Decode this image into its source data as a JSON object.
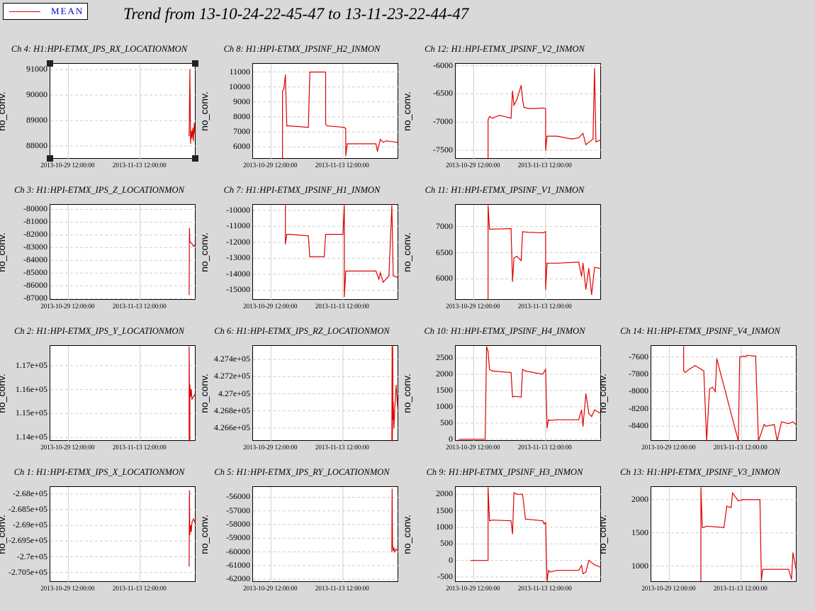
{
  "legend": {
    "label": "MEAN",
    "color": "#e00000"
  },
  "title": "Trend from 13-10-24-22-45-47 to 13-11-23-22-44-47",
  "colors": {
    "trace": "#e00000",
    "grid": "#cfcfcf",
    "background": "#d9d9d9"
  },
  "chart_data": [
    {
      "id": "ch4",
      "type": "line",
      "title": "Ch 4: H1:HPI-ETMX_IPS_RX_LOCATIONMON",
      "ylabel": "no_conv.",
      "ylim": [
        87500,
        91200
      ],
      "yticks": [
        88000,
        89000,
        90000,
        91000
      ],
      "ytick_labels": [
        "88000",
        "89000",
        "90000",
        "91000"
      ],
      "xlim": [
        0,
        1
      ],
      "xtick_pos": [
        0.12,
        0.62
      ],
      "xtick_labels": [
        "2013-10-29 12:00:00",
        "2013-11-13 12:00:00"
      ],
      "selected": true,
      "series": [
        {
          "x": [
            0.96,
            0.965,
            0.97,
            0.975,
            0.98,
            0.985,
            0.99,
            0.995,
            1.0
          ],
          "y": [
            88400,
            91000,
            88100,
            88600,
            88300,
            88700,
            88200,
            88900,
            88500
          ]
        }
      ]
    },
    {
      "id": "ch8",
      "type": "line",
      "title": "Ch 8: H1:HPI-ETMX_IPSINF_H2_INMON",
      "ylabel": "no_conv.",
      "ylim": [
        5200,
        11500
      ],
      "yticks": [
        6000,
        7000,
        8000,
        9000,
        10000,
        11000
      ],
      "ytick_labels": [
        "6000",
        "7000",
        "8000",
        "9000",
        "10000",
        "11000"
      ],
      "xlim": [
        0,
        1
      ],
      "xtick_pos": [
        0.12,
        0.62
      ],
      "xtick_labels": [
        "2013-10-29 12:00:00",
        "2013-11-13 12:00:00"
      ],
      "series": [
        {
          "x": [
            0.2,
            0.2,
            0.21,
            0.22,
            0.23,
            0.25,
            0.38,
            0.39,
            0.4,
            0.5,
            0.5,
            0.51,
            0.63,
            0.64,
            0.64,
            0.65,
            0.85,
            0.86,
            0.88,
            0.9,
            0.92,
            1.0
          ],
          "y": [
            5200,
            9700,
            9900,
            10800,
            7400,
            7400,
            7300,
            11000,
            11000,
            11000,
            7500,
            7400,
            7300,
            7200,
            5400,
            6200,
            6200,
            5700,
            6500,
            6300,
            6400,
            6300
          ]
        }
      ]
    },
    {
      "id": "ch12",
      "type": "line",
      "title": "Ch 12: H1:HPI-ETMX_IPSINF_V2_INMON",
      "ylabel": "no_conv.",
      "ylim": [
        -7650,
        -5980
      ],
      "yticks": [
        -7500,
        -7000,
        -6500,
        -6000
      ],
      "ytick_labels": [
        "-7500",
        "-7000",
        "-6500",
        "-6000"
      ],
      "xlim": [
        0,
        1
      ],
      "xtick_pos": [
        0.12,
        0.62
      ],
      "xtick_labels": [
        "2013-10-29 12:00:00",
        "2013-11-13 12:00:00"
      ],
      "series": [
        {
          "x": [
            0.22,
            0.22,
            0.23,
            0.25,
            0.3,
            0.38,
            0.39,
            0.4,
            0.42,
            0.45,
            0.46,
            0.47,
            0.5,
            0.55,
            0.6,
            0.62,
            0.62,
            0.63,
            0.7,
            0.8,
            0.85,
            0.88,
            0.9,
            0.95,
            0.96,
            0.97,
            1.0
          ],
          "y": [
            -7650,
            -6960,
            -6900,
            -6930,
            -6880,
            -6930,
            -6450,
            -6700,
            -6600,
            -6350,
            -6600,
            -6740,
            -6760,
            -6760,
            -6750,
            -6760,
            -7500,
            -7250,
            -7250,
            -7300,
            -7280,
            -7200,
            -7400,
            -7300,
            -6050,
            -7350,
            -7320
          ]
        }
      ]
    },
    {
      "id": "ch3",
      "type": "line",
      "title": "Ch 3: H1:HPI-ETMX_IPS_Z_LOCATIONMON",
      "ylabel": "no_conv.",
      "ylim": [
        -87100,
        -79700
      ],
      "yticks": [
        -87000,
        -86000,
        -85000,
        -84000,
        -83000,
        -82000,
        -81000,
        -80000
      ],
      "ytick_labels": [
        "-87000",
        "-86000",
        "-85000",
        "-84000",
        "-83000",
        "-82000",
        "-81000",
        "-80000"
      ],
      "xlim": [
        0,
        1
      ],
      "xtick_pos": [
        0.12,
        0.62
      ],
      "xtick_labels": [
        "2013-10-29 12:00:00",
        "2013-11-13 12:00:00"
      ],
      "series": [
        {
          "x": [
            0.96,
            0.962,
            0.965,
            0.97,
            0.98,
            0.99,
            1.0
          ],
          "y": [
            -86700,
            -81500,
            -82500,
            -82600,
            -82700,
            -82900,
            -82800
          ]
        }
      ]
    },
    {
      "id": "ch7",
      "type": "line",
      "title": "Ch 7: H1:HPI-ETMX_IPSINF_H1_INMON",
      "ylabel": "no_conv.",
      "ylim": [
        -15600,
        -9700
      ],
      "yticks": [
        -15000,
        -14000,
        -13000,
        -12000,
        -11000,
        -10000
      ],
      "ytick_labels": [
        "-15000",
        "-14000",
        "-13000",
        "-12000",
        "-11000",
        "-10000"
      ],
      "xlim": [
        0,
        1
      ],
      "xtick_pos": [
        0.12,
        0.62
      ],
      "xtick_labels": [
        "2013-10-29 12:00:00",
        "2013-11-13 12:00:00"
      ],
      "series": [
        {
          "x": [
            0.22,
            0.22,
            0.23,
            0.25,
            0.38,
            0.39,
            0.4,
            0.49,
            0.5,
            0.51,
            0.62,
            0.63,
            0.63,
            0.64,
            0.85,
            0.87,
            0.88,
            0.9,
            0.94,
            0.96,
            0.97,
            1.0
          ],
          "y": [
            -9700,
            -12100,
            -11500,
            -11500,
            -11600,
            -12900,
            -12900,
            -12900,
            -11500,
            -11500,
            -11500,
            -9700,
            -15400,
            -13800,
            -13800,
            -14300,
            -13900,
            -14500,
            -14100,
            -9700,
            -14100,
            -14200
          ]
        }
      ]
    },
    {
      "id": "ch11",
      "type": "line",
      "title": "Ch 11: H1:HPI-ETMX_IPSINF_V1_INMON",
      "ylabel": "no_conv.",
      "ylim": [
        5600,
        7400
      ],
      "yticks": [
        6000,
        6500,
        7000
      ],
      "ytick_labels": [
        "6000",
        "6500",
        "7000"
      ],
      "xlim": [
        0,
        1
      ],
      "xtick_pos": [
        0.12,
        0.62
      ],
      "xtick_labels": [
        "2013-10-29 12:00:00",
        "2013-11-13 12:00:00"
      ],
      "series": [
        {
          "x": [
            0.22,
            0.22,
            0.23,
            0.25,
            0.38,
            0.39,
            0.4,
            0.42,
            0.45,
            0.46,
            0.5,
            0.6,
            0.62,
            0.62,
            0.63,
            0.7,
            0.85,
            0.87,
            0.88,
            0.9,
            0.92,
            0.94,
            0.96,
            1.0
          ],
          "y": [
            5600,
            7400,
            6950,
            6950,
            6960,
            5950,
            6400,
            6430,
            6350,
            6900,
            6890,
            6880,
            6900,
            5800,
            6300,
            6300,
            6320,
            6050,
            6300,
            5800,
            6200,
            5700,
            6220,
            6200
          ]
        }
      ]
    },
    {
      "id": "ch14",
      "type": "line",
      "title": "Ch 14: H1:HPI-ETMX_IPSINF_V4_INMON",
      "ylabel": "no_conv.",
      "ylim": [
        -8570,
        -7480
      ],
      "yticks": [
        -8400,
        -8200,
        -8000,
        -7800,
        -7600
      ],
      "ytick_labels": [
        "-8400",
        "-8200",
        "-8000",
        "-7800",
        "-7600"
      ],
      "xlim": [
        0,
        1
      ],
      "xtick_pos": [
        0.12,
        0.62
      ],
      "xtick_labels": [
        "2013-10-29 12:00:00",
        "2013-11-13 12:00:00"
      ],
      "series": [
        {
          "x": [
            0.22,
            0.22,
            0.23,
            0.26,
            0.3,
            0.36,
            0.38,
            0.4,
            0.42,
            0.44,
            0.45,
            0.6,
            0.61,
            0.64,
            0.65,
            0.66,
            0.72,
            0.74,
            0.78,
            0.79,
            0.85,
            0.87,
            0.9,
            0.95,
            0.98,
            1.0
          ],
          "y": [
            -7480,
            -7760,
            -7780,
            -7740,
            -7700,
            -7760,
            -8570,
            -7970,
            -7950,
            -8000,
            -7620,
            -8570,
            -7600,
            -7590,
            -7600,
            -7580,
            -7590,
            -8570,
            -8380,
            -8400,
            -8380,
            -8570,
            -8350,
            -8370,
            -8350,
            -8380
          ]
        }
      ]
    },
    {
      "id": "ch2",
      "type": "line",
      "title": "Ch 2: H1:HPI-ETMX_IPS_Y_LOCATIONMON",
      "ylabel": "no_conv.",
      "ylim": [
        113850,
        117800
      ],
      "yticks": [
        114000,
        115000,
        116000,
        117000
      ],
      "ytick_labels": [
        "1.14e+05",
        "1.15e+05",
        "1.16e+05",
        "1.17e+05"
      ],
      "xlim": [
        0,
        1
      ],
      "xtick_pos": [
        0.12,
        0.62
      ],
      "xtick_labels": [
        "2013-10-29 12:00:00",
        "2013-11-13 12:00:00"
      ],
      "series": [
        {
          "x": [
            0.96,
            0.96,
            0.965,
            0.965,
            0.97,
            0.975,
            0.98,
            1.0
          ],
          "y": [
            113850,
            117800,
            113850,
            116200,
            115700,
            116000,
            115600,
            115800
          ]
        }
      ]
    },
    {
      "id": "ch6",
      "type": "line",
      "title": "Ch 6: H1:HPI-ETMX_IPS_RZ_LOCATIONMON",
      "ylabel": "no_conv.",
      "ylim": [
        426450,
        427550
      ],
      "yticks": [
        426600,
        426800,
        427000,
        427200,
        427400
      ],
      "ytick_labels": [
        "4.266e+05",
        "4.268e+05",
        "4.27e+05",
        "4.272e+05",
        "4.274e+05"
      ],
      "xlim": [
        0,
        1
      ],
      "xtick_pos": [
        0.12,
        0.62
      ],
      "xtick_labels": [
        "2013-10-29 12:00:00",
        "2013-11-13 12:00:00"
      ],
      "series": [
        {
          "x": [
            0.96,
            0.962,
            0.964,
            0.966,
            0.968,
            0.97,
            0.975,
            0.98,
            0.99,
            1.0
          ],
          "y": [
            426450,
            427550,
            426450,
            427550,
            426700,
            426900,
            426600,
            426800,
            427100,
            426850
          ]
        }
      ]
    },
    {
      "id": "ch10",
      "type": "line",
      "title": "Ch 10: H1:HPI-ETMX_IPSINF_H4_INMON",
      "ylabel": "no_conv.",
      "ylim": [
        -50,
        2850
      ],
      "yticks": [
        0,
        500,
        1000,
        1500,
        2000,
        2500
      ],
      "ytick_labels": [
        "0",
        "500",
        "1000",
        "1500",
        "2000",
        "2500"
      ],
      "xlim": [
        0,
        1
      ],
      "xtick_pos": [
        0.12,
        0.62
      ],
      "xtick_labels": [
        "2013-10-29 12:00:00",
        "2013-11-13 12:00:00"
      ],
      "series": [
        {
          "x": [
            0.02,
            0.2,
            0.21,
            0.22,
            0.23,
            0.25,
            0.38,
            0.39,
            0.4,
            0.45,
            0.46,
            0.48,
            0.6,
            0.62,
            0.63,
            0.64,
            0.65,
            0.7,
            0.85,
            0.87,
            0.88,
            0.9,
            0.92,
            0.94,
            0.96,
            1.0
          ],
          "y": [
            0,
            0,
            2850,
            2700,
            2150,
            2100,
            2050,
            1300,
            1320,
            1300,
            2150,
            2100,
            2000,
            2150,
            350,
            600,
            580,
            600,
            600,
            900,
            400,
            1400,
            800,
            700,
            900,
            800
          ]
        }
      ]
    },
    {
      "id": "ch1",
      "type": "line",
      "title": "Ch 1: H1:HPI-ETMX_IPS_X_LOCATIONMON",
      "ylabel": "no_conv.",
      "ylim": [
        -270800,
        -267800
      ],
      "yticks": [
        -270500,
        -270000,
        -269500,
        -269000,
        -268500,
        -268000
      ],
      "ytick_labels": [
        "-2.705e+05",
        "-2.7e+05",
        "-2.695e+05",
        "-2.69e+05",
        "-2.685e+05",
        "-2.68e+05"
      ],
      "xlim": [
        0,
        1
      ],
      "xtick_pos": [
        0.12,
        0.62
      ],
      "xtick_labels": [
        "2013-10-29 12:00:00",
        "2013-11-13 12:00:00"
      ],
      "series": [
        {
          "x": [
            0.96,
            0.962,
            0.965,
            0.97,
            0.975,
            0.98,
            0.99,
            1.0
          ],
          "y": [
            -270300,
            -267900,
            -269300,
            -269000,
            -269200,
            -268900,
            -268800,
            -268900
          ]
        }
      ]
    },
    {
      "id": "ch5",
      "type": "line",
      "title": "Ch 5: H1:HPI-ETMX_IPS_RY_LOCATIONMON",
      "ylabel": "no_conv.",
      "ylim": [
        -62200,
        -55300
      ],
      "yticks": [
        -62000,
        -61000,
        -60000,
        -59000,
        -58000,
        -57000,
        -56000
      ],
      "ytick_labels": [
        "-62000",
        "-61000",
        "-60000",
        "-59000",
        "-58000",
        "-57000",
        "-56000"
      ],
      "xlim": [
        0,
        1
      ],
      "xtick_pos": [
        0.12,
        0.62
      ],
      "xtick_labels": [
        "2013-10-29 12:00:00",
        "2013-11-13 12:00:00"
      ],
      "series": [
        {
          "x": [
            0.96,
            0.962,
            0.965,
            0.97,
            0.975,
            0.98,
            0.99,
            1.0
          ],
          "y": [
            -60000,
            -55400,
            -59500,
            -59900,
            -59700,
            -60000,
            -59800,
            -59900
          ]
        }
      ]
    },
    {
      "id": "ch9",
      "type": "line",
      "title": "Ch 9: H1:HPI-ETMX_IPSINF_H3_INMON",
      "ylabel": "no_conv.",
      "ylim": [
        -650,
        2200
      ],
      "yticks": [
        -500,
        0,
        500,
        1000,
        1500,
        2000
      ],
      "ytick_labels": [
        "-500",
        "0",
        "500",
        "1000",
        "1500",
        "2000"
      ],
      "xlim": [
        0,
        1
      ],
      "xtick_pos": [
        0.12,
        0.62
      ],
      "xtick_labels": [
        "2013-10-29 12:00:00",
        "2013-11-13 12:00:00"
      ],
      "series": [
        {
          "x": [
            0.1,
            0.22,
            0.22,
            0.23,
            0.25,
            0.38,
            0.39,
            0.4,
            0.42,
            0.46,
            0.48,
            0.6,
            0.61,
            0.62,
            0.63,
            0.64,
            0.65,
            0.7,
            0.85,
            0.87,
            0.88,
            0.9,
            0.92,
            0.95,
            0.97,
            1.0
          ],
          "y": [
            0,
            0,
            2200,
            1200,
            1220,
            1200,
            800,
            2050,
            2000,
            2000,
            1250,
            1200,
            1100,
            1150,
            -650,
            -300,
            -350,
            -300,
            -300,
            -150,
            -400,
            -350,
            0,
            -100,
            -150,
            -200
          ]
        }
      ]
    },
    {
      "id": "ch13",
      "type": "line",
      "title": "Ch 13: H1:HPI-ETMX_IPSINF_V3_INMON",
      "ylabel": "no_conv.",
      "ylim": [
        760,
        2180
      ],
      "yticks": [
        1000,
        1500,
        2000
      ],
      "ytick_labels": [
        "1000",
        "1500",
        "2000"
      ],
      "xlim": [
        0,
        1
      ],
      "xtick_pos": [
        0.12,
        0.62
      ],
      "xtick_labels": [
        "2013-10-29 12:00:00",
        "2013-11-13 12:00:00"
      ],
      "series": [
        {
          "x": [
            0.34,
            0.34,
            0.35,
            0.36,
            0.38,
            0.5,
            0.52,
            0.55,
            0.56,
            0.6,
            0.63,
            0.65,
            0.75,
            0.76,
            0.77,
            0.8,
            0.95,
            0.97,
            0.98,
            1.0
          ],
          "y": [
            760,
            2180,
            1580,
            1580,
            1600,
            1580,
            1900,
            1880,
            2100,
            1980,
            2000,
            2000,
            2000,
            780,
            950,
            950,
            950,
            800,
            1200,
            960
          ]
        }
      ]
    }
  ]
}
